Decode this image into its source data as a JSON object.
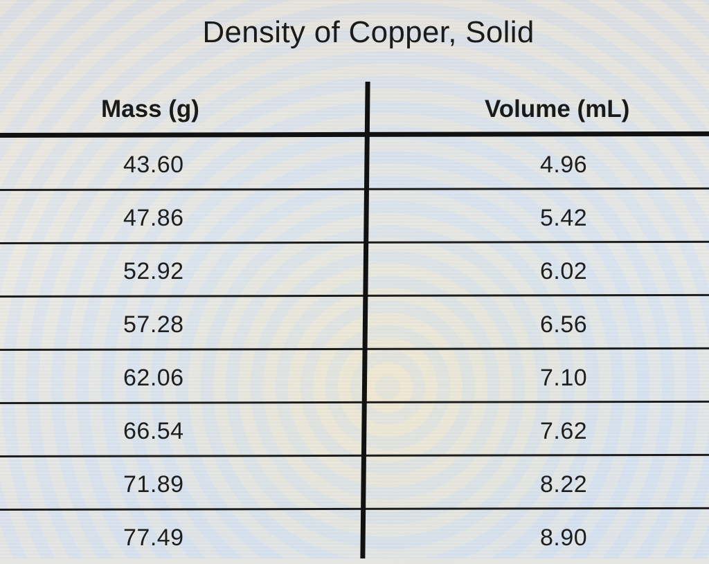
{
  "title": "Density of Copper, Solid",
  "table": {
    "headers": {
      "mass": "Mass (g)",
      "volume": "Volume (mL)"
    },
    "rows": [
      {
        "mass": "43.60",
        "volume": "4.96"
      },
      {
        "mass": "47.86",
        "volume": "5.42"
      },
      {
        "mass": "52.92",
        "volume": "6.02"
      },
      {
        "mass": "57.28",
        "volume": "6.56"
      },
      {
        "mass": "62.06",
        "volume": "7.10"
      },
      {
        "mass": "66.54",
        "volume": "7.62"
      },
      {
        "mass": "71.89",
        "volume": "8.22"
      },
      {
        "mass": "77.49",
        "volume": "8.90"
      }
    ]
  }
}
